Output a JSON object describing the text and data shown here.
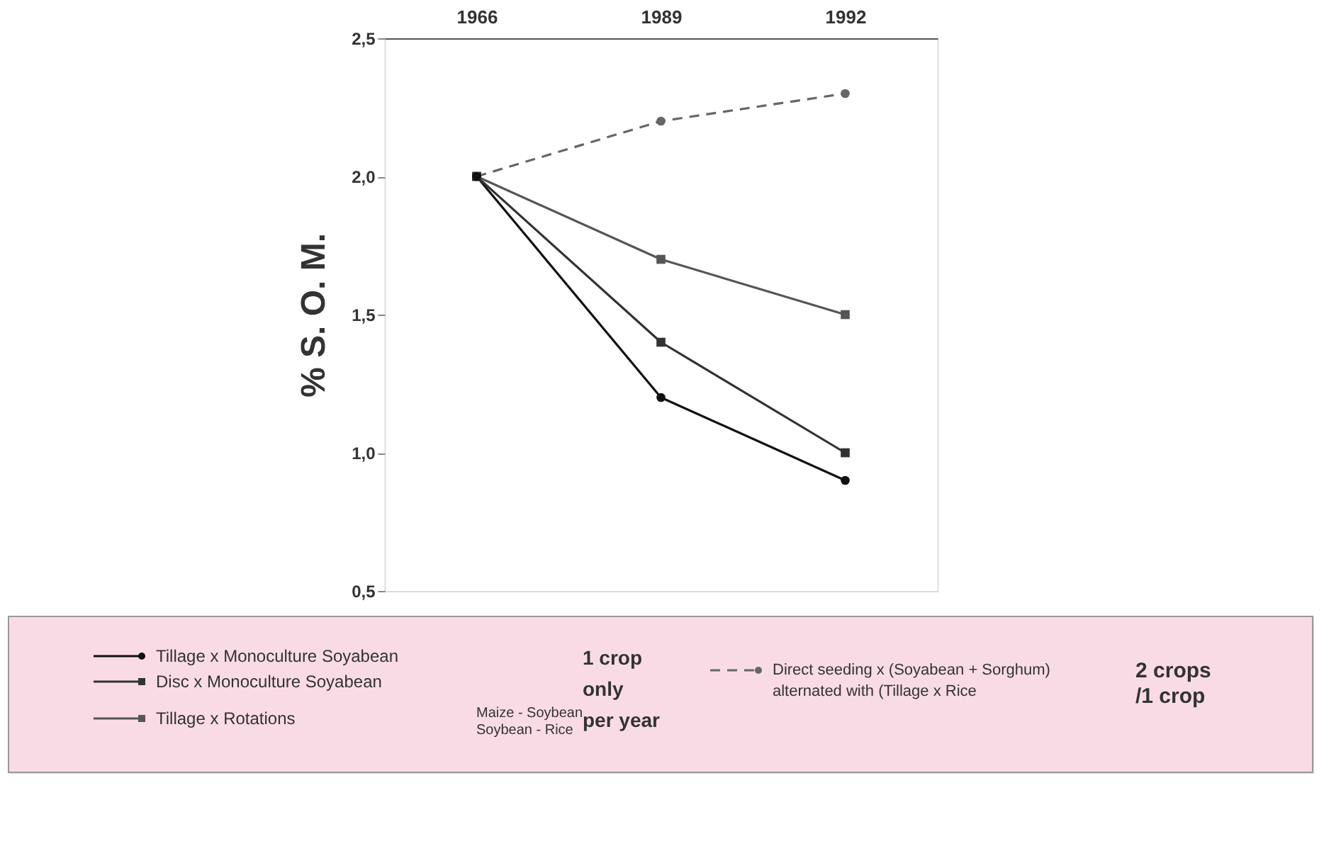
{
  "chart_data": {
    "type": "line",
    "ylabel": "% S. O. M.",
    "categories": [
      "1966",
      "1989",
      "1992"
    ],
    "ylim": [
      0.5,
      2.5
    ],
    "yticks": [
      {
        "value": 0.5,
        "label": "0,5"
      },
      {
        "value": 1.0,
        "label": "1,0"
      },
      {
        "value": 1.5,
        "label": "1,5"
      },
      {
        "value": 2.0,
        "label": "2,0"
      },
      {
        "value": 2.5,
        "label": "2,5"
      }
    ],
    "grid": false,
    "legend": "bottom",
    "series": [
      {
        "name": "Tillage x Monoculture Soyabean",
        "color": "#111111",
        "marker": "circle",
        "line_style": "solid",
        "values": [
          2.0,
          1.2,
          0.9
        ]
      },
      {
        "name": "Disc x Monoculture Soyabean",
        "color": "#333333",
        "marker": "square",
        "line_style": "solid",
        "values": [
          2.0,
          1.4,
          1.0
        ]
      },
      {
        "name": "Tillage x Rotations",
        "color": "#555555",
        "marker": "square",
        "line_style": "solid",
        "values": [
          2.0,
          1.7,
          1.5
        ]
      },
      {
        "name": "Direct seeding x (Soyabean + Sorghum) alternated with (Tillage x Rice",
        "color": "#666666",
        "marker": "circle",
        "line_style": "dashed",
        "values": [
          2.0,
          2.2,
          2.3
        ]
      }
    ],
    "annotations": [
      "Maize - Soybean",
      "Soybean - Rice",
      "1 crop only per year",
      "2 crops /1 crop"
    ]
  }
}
